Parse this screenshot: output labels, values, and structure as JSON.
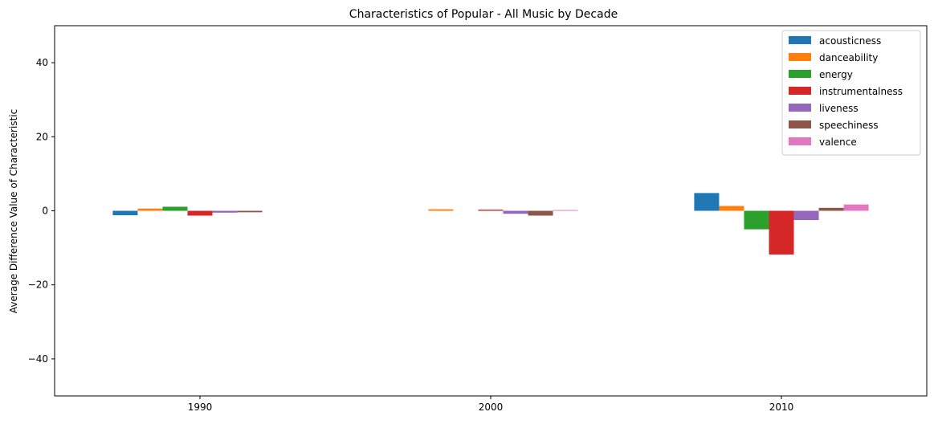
{
  "chart_data": {
    "type": "bar",
    "title": "Characteristics of Popular - All Music by Decade",
    "xlabel": "",
    "ylabel": "Average Difference Value of Characteristic",
    "categories": [
      "1990",
      "2000",
      "2010"
    ],
    "ylim": [
      -50,
      50
    ],
    "yticks": [
      -40,
      -20,
      0,
      20,
      40
    ],
    "grid": false,
    "legend_position": "top-right",
    "series": [
      {
        "name": "acousticness",
        "color": "#1f77b4",
        "values": [
          -1.2,
          0.0,
          4.8
        ]
      },
      {
        "name": "danceability",
        "color": "#ff7f0e",
        "values": [
          0.6,
          0.4,
          1.3
        ]
      },
      {
        "name": "energy",
        "color": "#2ca02c",
        "values": [
          1.1,
          0.0,
          -5.0
        ]
      },
      {
        "name": "instrumentalness",
        "color": "#d62728",
        "values": [
          -1.3,
          0.3,
          -11.8
        ]
      },
      {
        "name": "liveness",
        "color": "#9467bd",
        "values": [
          -0.5,
          -0.8,
          -2.5
        ]
      },
      {
        "name": "speechiness",
        "color": "#8c564b",
        "values": [
          -0.4,
          -1.3,
          0.8
        ]
      },
      {
        "name": "valence",
        "color": "#e377c2",
        "values": [
          0.0,
          0.2,
          1.7
        ]
      }
    ]
  }
}
